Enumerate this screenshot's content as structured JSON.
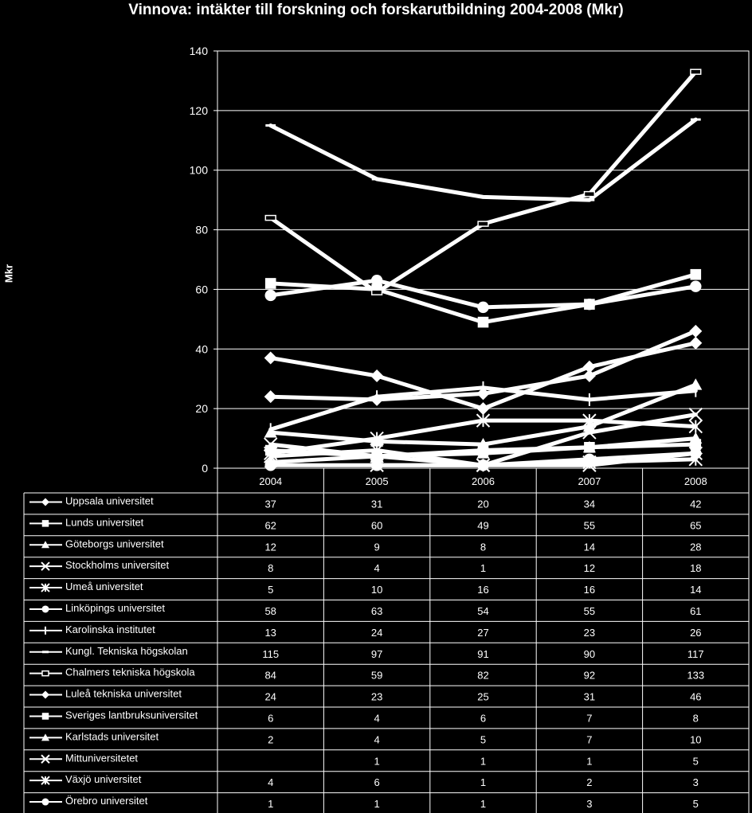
{
  "chart_data": {
    "type": "line",
    "title": "Vinnova: intäkter till forskning och forskarutbildning 2004-2008 (Mkr)",
    "xlabel": "",
    "ylabel": "Mkr",
    "ylim": [
      0,
      140
    ],
    "yticks": [
      0,
      20,
      40,
      60,
      80,
      100,
      120,
      140
    ],
    "grid": true,
    "legend": "data-table-below",
    "categories": [
      "2004",
      "2005",
      "2006",
      "2007",
      "2008"
    ],
    "colors": {
      "background": "#000000",
      "line": "#ffffff",
      "grid": "#ffffff"
    },
    "series": [
      {
        "name": "Uppsala universitet",
        "marker": "diamond",
        "values": [
          37,
          31,
          20,
          34,
          42
        ]
      },
      {
        "name": "Lunds universitet",
        "marker": "square",
        "values": [
          62,
          60,
          49,
          55,
          65
        ]
      },
      {
        "name": "Göteborgs universitet",
        "marker": "triangle",
        "values": [
          12,
          9,
          8,
          14,
          28
        ]
      },
      {
        "name": "Stockholms universitet",
        "marker": "x",
        "values": [
          8,
          4,
          1,
          12,
          18
        ]
      },
      {
        "name": "Umeå universitet",
        "marker": "star",
        "values": [
          5,
          10,
          16,
          16,
          14
        ]
      },
      {
        "name": "Linköpings universitet",
        "marker": "circle",
        "values": [
          58,
          63,
          54,
          55,
          61
        ]
      },
      {
        "name": "Karolinska institutet",
        "marker": "plus",
        "values": [
          13,
          24,
          27,
          23,
          26
        ]
      },
      {
        "name": "Kungl. Tekniska högskolan",
        "marker": "dash",
        "values": [
          115,
          97,
          91,
          90,
          117
        ]
      },
      {
        "name": "Chalmers tekniska högskola",
        "marker": "hollow-rect",
        "values": [
          84,
          59,
          82,
          92,
          133
        ]
      },
      {
        "name": "Luleå tekniska universitet",
        "marker": "diamond",
        "values": [
          24,
          23,
          25,
          31,
          46
        ]
      },
      {
        "name": "Sveriges lantbruksuniversitet",
        "marker": "square",
        "values": [
          6,
          4,
          6,
          7,
          8
        ]
      },
      {
        "name": "Karlstads universitet",
        "marker": "triangle",
        "values": [
          2,
          4,
          5,
          7,
          10
        ]
      },
      {
        "name": "Mittuniversitetet",
        "marker": "x",
        "values": [
          null,
          1,
          1,
          1,
          5
        ]
      },
      {
        "name": "Växjö universitet",
        "marker": "star",
        "values": [
          4,
          6,
          1,
          2,
          3
        ]
      },
      {
        "name": "Örebro universitet",
        "marker": "circle",
        "values": [
          1,
          1,
          1,
          3,
          5
        ]
      }
    ]
  }
}
